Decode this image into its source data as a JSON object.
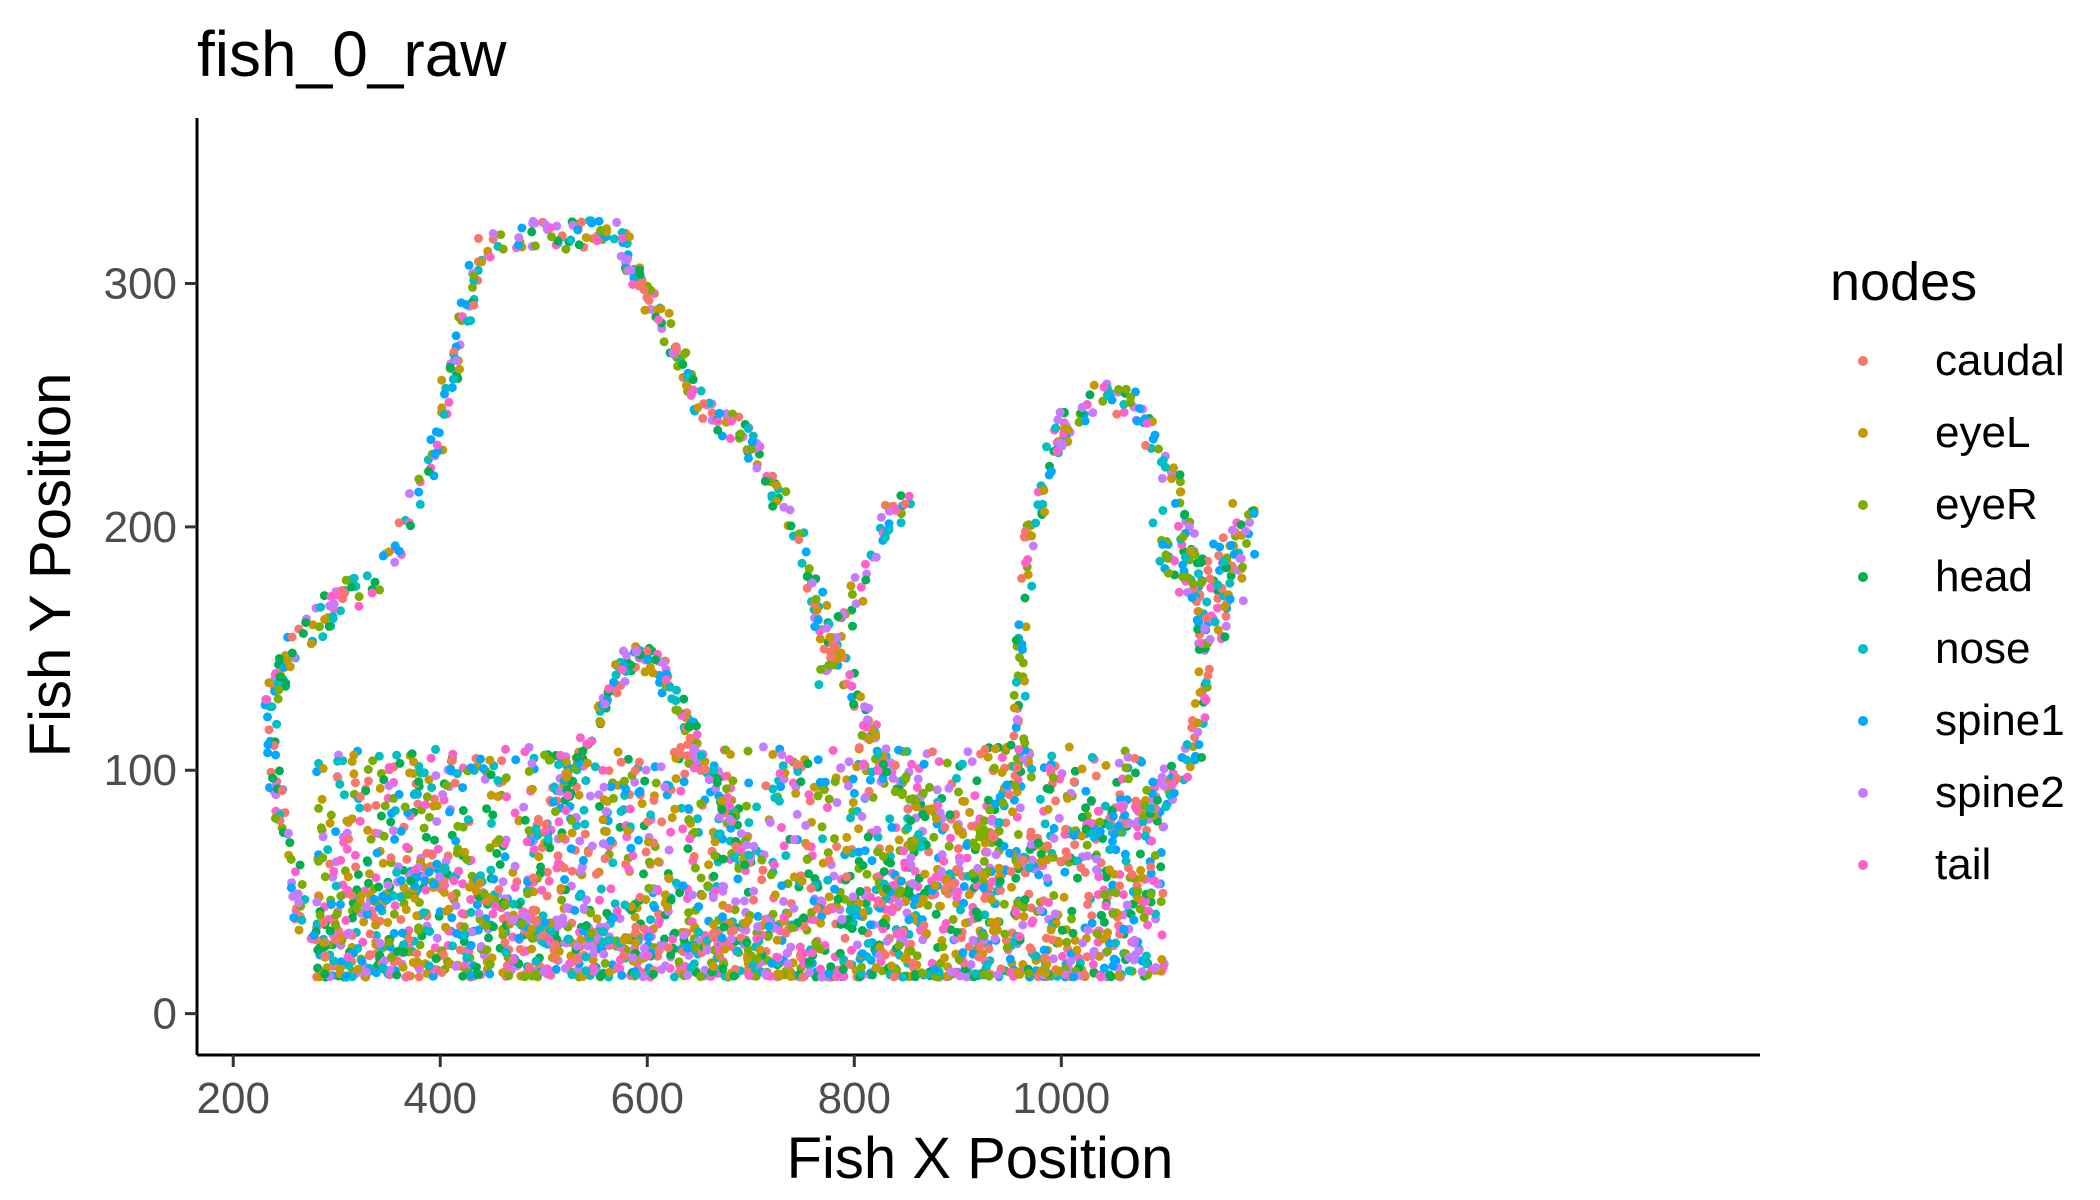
{
  "chart_data": {
    "type": "scatter",
    "title": "fish_0_raw",
    "xlabel": "Fish X Position",
    "ylabel": "Fish Y Position",
    "xlim": [
      165,
      1675
    ],
    "ylim": [
      -17,
      368
    ],
    "xticks": [
      200,
      400,
      600,
      800,
      1000
    ],
    "yticks": [
      0,
      100,
      200,
      300
    ],
    "grid": false,
    "legend": {
      "title": "nodes",
      "position": "right"
    },
    "series": [
      {
        "name": "caudal",
        "color": "#F8766D"
      },
      {
        "name": "eyeL",
        "color": "#C49A00"
      },
      {
        "name": "eyeR",
        "color": "#7CAE00"
      },
      {
        "name": "head",
        "color": "#00B050"
      },
      {
        "name": "nose",
        "color": "#00BFC4"
      },
      {
        "name": "spine1",
        "color": "#00A9FF"
      },
      {
        "name": "spine2",
        "color": "#C77CFF"
      },
      {
        "name": "tail",
        "color": "#FF61CC"
      }
    ],
    "trajectory": [
      [
        240,
        90
      ],
      [
        235,
        130
      ],
      [
        260,
        150
      ],
      [
        300,
        170
      ],
      [
        330,
        175
      ],
      [
        350,
        185
      ],
      [
        370,
        200
      ],
      [
        400,
        240
      ],
      [
        420,
        280
      ],
      [
        440,
        315
      ],
      [
        460,
        320
      ],
      [
        520,
        320
      ],
      [
        570,
        320
      ],
      [
        620,
        280
      ],
      [
        650,
        250
      ],
      [
        700,
        235
      ],
      [
        740,
        200
      ],
      [
        770,
        160
      ],
      [
        800,
        130
      ],
      [
        820,
        110
      ],
      [
        850,
        90
      ],
      [
        890,
        80
      ],
      [
        930,
        70
      ],
      [
        960,
        110
      ],
      [
        960,
        150
      ],
      [
        970,
        200
      ],
      [
        1000,
        240
      ],
      [
        1040,
        255
      ],
      [
        1070,
        250
      ],
      [
        1100,
        230
      ],
      [
        1120,
        200
      ],
      [
        1140,
        150
      ],
      [
        1130,
        110
      ],
      [
        1100,
        90
      ],
      [
        1060,
        80
      ],
      [
        1000,
        70
      ],
      [
        950,
        60
      ],
      [
        900,
        55
      ],
      [
        850,
        50
      ],
      [
        800,
        45
      ],
      [
        750,
        40
      ],
      [
        700,
        35
      ],
      [
        650,
        30
      ],
      [
        600,
        28
      ],
      [
        550,
        30
      ],
      [
        500,
        35
      ],
      [
        470,
        40
      ],
      [
        440,
        50
      ],
      [
        420,
        60
      ],
      [
        390,
        55
      ],
      [
        350,
        50
      ],
      [
        310,
        40
      ],
      [
        280,
        30
      ],
      [
        265,
        40
      ],
      [
        260,
        60
      ],
      [
        250,
        75
      ],
      [
        240,
        90
      ]
    ],
    "hump": [
      [
        500,
        70
      ],
      [
        530,
        100
      ],
      [
        560,
        130
      ],
      [
        590,
        150
      ],
      [
        615,
        140
      ],
      [
        650,
        110
      ],
      [
        680,
        80
      ],
      [
        700,
        60
      ]
    ],
    "spike": [
      [
        770,
        140
      ],
      [
        790,
        160
      ],
      [
        810,
        180
      ],
      [
        830,
        200
      ],
      [
        850,
        210
      ]
    ],
    "right_cloud": [
      [
        1100,
        200
      ],
      [
        1120,
        180
      ],
      [
        1140,
        170
      ],
      [
        1160,
        185
      ],
      [
        1180,
        200
      ],
      [
        1150,
        160
      ],
      [
        1130,
        175
      ]
    ],
    "point_counts": {
      "trajectory": 1200,
      "hump": 200,
      "spike": 60,
      "right_cloud": 120,
      "dense_band": 2400
    },
    "dense_band": {
      "x": [
        280,
        1100
      ],
      "y": [
        15,
        110
      ]
    }
  }
}
